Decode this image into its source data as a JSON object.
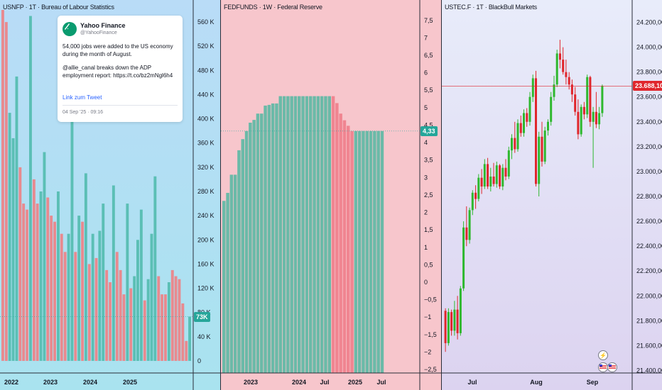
{
  "panes": [
    {
      "title": "USNFP · 1T · Bureau of Labour Statistics",
      "price_label": "73K",
      "tweet": {
        "name": "Yahoo Finance",
        "handle": "@YahooFinance",
        "text1": "54,000 jobs were added to the US economy during the month of August.",
        "text2": "@allie_canal breaks down the ADP employment report: https://t.co/bz2mNgl6h4",
        "link": "Link zum Tweet",
        "time": "04 Sep '25 · 09:16"
      }
    },
    {
      "title": "FEDFUNDS · 1W · Federal Reserve",
      "price_label": "4,33"
    },
    {
      "title": "USTEC.F · 1T · BlackBull Markets",
      "price_label": "23.688,10"
    }
  ],
  "colors": {
    "up": "#26a69a",
    "down": "#ef5350",
    "nfp_up": "#5bbfb5",
    "nfp_down": "#e88a8f",
    "fed_up": "#6bbaa8",
    "fed_down": "#f08591",
    "candle_up": "#2eb82e",
    "candle_down": "#e0262c"
  },
  "chart_data": [
    {
      "type": "bar",
      "title": "USNFP · 1T · Bureau of Labour Statistics",
      "x_ticks": [
        "2022",
        "2023",
        "2024",
        "2025"
      ],
      "y_ticks": [
        "0",
        "40 K",
        "80 K",
        "120 K",
        "160 K",
        "200 K",
        "240 K",
        "280 K",
        "320 K",
        "360 K",
        "400 K",
        "440 K",
        "480 K",
        "520 K",
        "560 K"
      ],
      "ylim": [
        -20000,
        580000
      ],
      "last_value": 73000,
      "values": [
        590000,
        560000,
        410000,
        368000,
        470000,
        320000,
        260000,
        250000,
        570000,
        300000,
        260000,
        280000,
        345000,
        270000,
        240000,
        230000,
        280000,
        210000,
        180000,
        210000,
        480000,
        180000,
        240000,
        230000,
        310000,
        160000,
        210000,
        170000,
        215000,
        260000,
        150000,
        130000,
        290000,
        180000,
        150000,
        110000,
        260000,
        120000,
        140000,
        200000,
        250000,
        100000,
        135000,
        210000,
        305000,
        140000,
        110000,
        110000,
        130000,
        150000,
        140000,
        135000,
        95000,
        33000,
        73000
      ],
      "colors_down": [
        1,
        1,
        0,
        0,
        0,
        1,
        1,
        1,
        0,
        1,
        1,
        0,
        0,
        1,
        1,
        1,
        0,
        1,
        1,
        0,
        0,
        1,
        0,
        1,
        0,
        1,
        0,
        1,
        0,
        0,
        1,
        1,
        0,
        1,
        1,
        1,
        0,
        1,
        0,
        0,
        0,
        1,
        0,
        0,
        0,
        1,
        1,
        1,
        0,
        1,
        1,
        1,
        1,
        1,
        0
      ]
    },
    {
      "type": "bar",
      "title": "FEDFUNDS · 1W · Federal Reserve",
      "x_ticks": [
        "2023",
        "2024",
        "Jul",
        "2025",
        "Jul"
      ],
      "y_ticks": [
        "7,5",
        "7",
        "6,5",
        "6",
        "5,5",
        "5",
        "4,5",
        "4",
        "3,5",
        "3",
        "2,5",
        "2",
        "1,5",
        "1",
        "0,5",
        "0",
        "−0,5",
        "−1",
        "−1,5",
        "−2",
        "−2,5"
      ],
      "ylim": [
        -2.6,
        7.8
      ],
      "last_value": 4.33,
      "values": [
        2.33,
        2.56,
        3.08,
        3.08,
        3.78,
        4.1,
        4.33,
        4.57,
        4.65,
        4.83,
        4.83,
        5.06,
        5.08,
        5.12,
        5.12,
        5.33,
        5.33,
        5.33,
        5.33,
        5.33,
        5.33,
        5.33,
        5.33,
        5.33,
        5.33,
        5.33,
        5.33,
        5.33,
        5.33,
        5.33,
        5.13,
        4.83,
        4.64,
        4.48,
        4.33,
        4.33,
        4.33,
        4.33,
        4.33,
        4.33,
        4.33,
        4.33,
        4.33
      ],
      "colors_down": [
        0,
        0,
        0,
        0,
        0,
        0,
        0,
        0,
        0,
        0,
        0,
        0,
        0,
        0,
        0,
        0,
        0,
        0,
        0,
        0,
        0,
        0,
        0,
        0,
        0,
        0,
        0,
        0,
        0,
        1,
        1,
        1,
        1,
        1,
        1,
        0,
        0,
        0,
        0,
        0,
        0,
        0,
        0
      ]
    },
    {
      "type": "candlestick",
      "title": "USTEC.F · 1T · BlackBull Markets",
      "x_ticks": [
        "Jul",
        "Aug",
        "Sep"
      ],
      "y_ticks": [
        "24.200,00",
        "24.000,00",
        "23.800,00",
        "23.600,00",
        "23.400,00",
        "23.200,00",
        "23.000,00",
        "22.800,00",
        "22.600,00",
        "22.400,00",
        "22.200,00",
        "22.000,00",
        "21.800,00",
        "21.600,00",
        "21.400,00"
      ],
      "ylim": [
        21380,
        24300
      ],
      "last_value": 23688.1,
      "ohlc": [
        [
          21880,
          21900,
          21550,
          21620
        ],
        [
          21620,
          21900,
          21600,
          21870
        ],
        [
          21870,
          21890,
          21680,
          21720
        ],
        [
          21720,
          21960,
          21680,
          21890
        ],
        [
          21890,
          22000,
          21650,
          21700
        ],
        [
          21700,
          22080,
          21680,
          22060
        ],
        [
          22060,
          22600,
          22040,
          22550
        ],
        [
          22550,
          22720,
          22400,
          22450
        ],
        [
          22450,
          22710,
          22420,
          22690
        ],
        [
          22690,
          22850,
          22650,
          22830
        ],
        [
          22830,
          22890,
          22700,
          22780
        ],
        [
          22780,
          22980,
          22760,
          22950
        ],
        [
          22950,
          23020,
          22820,
          22880
        ],
        [
          22880,
          23100,
          22860,
          23060
        ],
        [
          23060,
          23110,
          22860,
          22880
        ],
        [
          22880,
          23030,
          22840,
          22960
        ],
        [
          22960,
          23070,
          22880,
          22900
        ],
        [
          22900,
          23080,
          22870,
          23050
        ],
        [
          23050,
          23060,
          22860,
          22880
        ],
        [
          22880,
          23060,
          22850,
          23030
        ],
        [
          23030,
          23100,
          22930,
          22960
        ],
        [
          22960,
          23200,
          22940,
          23170
        ],
        [
          23170,
          23300,
          23100,
          23270
        ],
        [
          23270,
          23400,
          23150,
          23180
        ],
        [
          23180,
          23420,
          23160,
          23390
        ],
        [
          23390,
          23450,
          23280,
          23310
        ],
        [
          23310,
          23500,
          23280,
          23470
        ],
        [
          23470,
          23510,
          23360,
          23400
        ],
        [
          23400,
          23640,
          23370,
          23600
        ],
        [
          23600,
          23780,
          23560,
          23750
        ],
        [
          23750,
          23810,
          22880,
          22900
        ],
        [
          22900,
          23320,
          22800,
          23280
        ],
        [
          23280,
          23400,
          23040,
          23080
        ],
        [
          23080,
          23360,
          23060,
          23330
        ],
        [
          23330,
          23420,
          23290,
          23400
        ],
        [
          23400,
          23640,
          23370,
          23600
        ],
        [
          23600,
          23770,
          23570,
          23700
        ],
        [
          23700,
          23980,
          23680,
          23950
        ],
        [
          23950,
          24060,
          23830,
          23900
        ],
        [
          23900,
          24000,
          23780,
          23800
        ],
        [
          23800,
          23900,
          23700,
          23760
        ],
        [
          23760,
          23800,
          23660,
          23700
        ],
        [
          23700,
          23740,
          23560,
          23620
        ],
        [
          23620,
          23680,
          23450,
          23480
        ],
        [
          23480,
          23580,
          23260,
          23300
        ],
        [
          23300,
          23540,
          23280,
          23520
        ],
        [
          23520,
          23560,
          23420,
          23460
        ],
        [
          23460,
          23780,
          23430,
          23760
        ],
        [
          23760,
          23770,
          23360,
          23400
        ],
        [
          23400,
          23520,
          23030,
          23480
        ],
        [
          23480,
          23640,
          23350,
          23380
        ],
        [
          23380,
          23520,
          23340,
          23470
        ],
        [
          23470,
          23700,
          23440,
          23688
        ]
      ]
    }
  ]
}
